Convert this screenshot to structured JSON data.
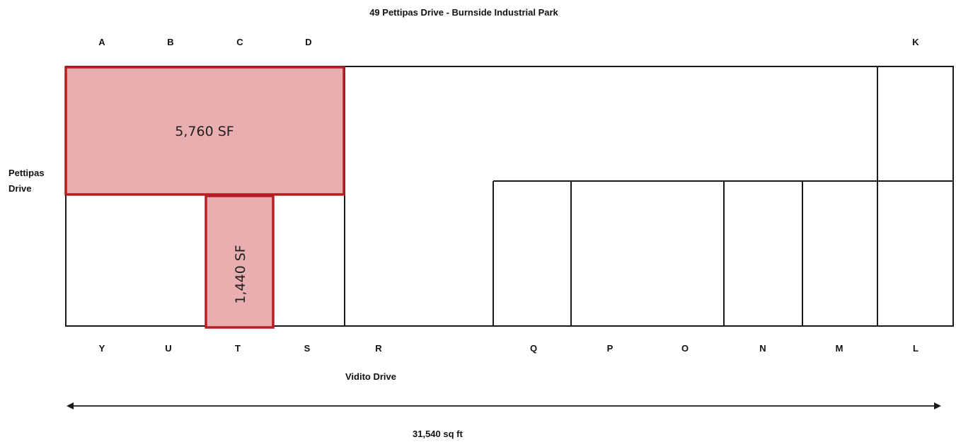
{
  "title": "49 Pettipas Drive - Burnside Industrial Park",
  "street_left": {
    "line1": "Pettipas",
    "line2": "Drive"
  },
  "street_bottom": "Vidito Drive",
  "total_area": "31,540 sq ft",
  "top_units": [
    "A",
    "B",
    "C",
    "D",
    "K"
  ],
  "bottom_units": [
    "Y",
    "U",
    "T",
    "S",
    "R",
    "Q",
    "P",
    "O",
    "N",
    "M",
    "L"
  ],
  "highlighted_spaces": [
    {
      "label": "5,760 SF"
    },
    {
      "label": "1,440 SF"
    }
  ],
  "colors": {
    "highlight_fill": "#e8aeb0",
    "highlight_stroke": "#b81d24",
    "outline": "#1a1a1a"
  }
}
